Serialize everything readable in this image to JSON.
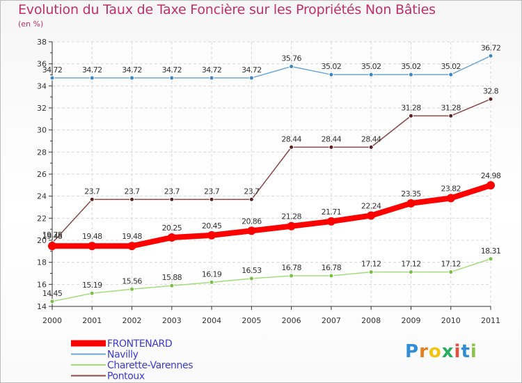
{
  "title": "Evolution du Taux de Taxe Foncière sur les Propriétés Non Bâties",
  "unit_label": "(en %)",
  "logo": {
    "text": "Proxiti",
    "letters": [
      {
        "ch": "P",
        "color": "#2f8ed6"
      },
      {
        "ch": "r",
        "color": "#e67e22"
      },
      {
        "ch": "o",
        "color": "#f1c40f"
      },
      {
        "ch": "x",
        "color": "#27ae60"
      },
      {
        "ch": "i",
        "color": "#e74c3c"
      },
      {
        "ch": "t",
        "color": "#2f8ed6"
      },
      {
        "ch": "i",
        "color": "#8bc34a"
      }
    ]
  },
  "chart_data": {
    "type": "line",
    "title": "Evolution du Taux de Taxe Foncière sur les Propriétés Non Bâties",
    "ylabel": "(en %)",
    "xlabel": "",
    "x": [
      "2000",
      "2001",
      "2002",
      "2003",
      "2004",
      "2005",
      "2006",
      "2007",
      "2008",
      "2009",
      "2010",
      "2011"
    ],
    "ylim": [
      14,
      38
    ],
    "yticks": [
      14,
      16,
      18,
      20,
      22,
      24,
      26,
      28,
      30,
      32,
      34,
      36,
      38
    ],
    "grid": true,
    "legend_position": "bottom-left",
    "series": [
      {
        "name": "Navilly",
        "color": "#6ea6d8",
        "point_color": "#3d86c6",
        "width": 1.5,
        "r": 3,
        "values": [
          34.72,
          34.72,
          34.72,
          34.72,
          34.72,
          34.72,
          35.76,
          35.02,
          35.02,
          35.02,
          35.02,
          36.72
        ],
        "labels": [
          "34.72",
          "34.72",
          "34.72",
          "34.72",
          "34.72",
          "34.72",
          "35.76",
          "35.02",
          "35.02",
          "35.02",
          "35.02",
          "36.72"
        ]
      },
      {
        "name": "Pontoux",
        "color": "#8a4848",
        "point_color": "#5a1f1f",
        "width": 1.5,
        "r": 3,
        "values": [
          19.75,
          23.7,
          23.7,
          23.7,
          23.7,
          23.7,
          28.44,
          28.44,
          28.44,
          31.28,
          31.28,
          32.8
        ],
        "labels": [
          "19.75",
          "23.7",
          "23.7",
          "23.7",
          "23.7",
          "23.7",
          "28.44",
          "28.44",
          "28.44",
          "31.28",
          "31.28",
          "32.8"
        ]
      },
      {
        "name": "Charette-Varennes",
        "color": "#a5dc7a",
        "point_color": "#76c043",
        "width": 1.5,
        "r": 3,
        "values": [
          14.45,
          15.19,
          15.56,
          15.88,
          16.19,
          16.53,
          16.78,
          16.78,
          17.12,
          17.12,
          17.12,
          18.31
        ],
        "labels": [
          "14.45",
          "15.19",
          "15.56",
          "15.88",
          "16.19",
          "16.53",
          "16.78",
          "16.78",
          "17.12",
          "17.12",
          "17.12",
          "18.31"
        ]
      },
      {
        "name": "FRONTENARD",
        "color": "#ff0000",
        "point_color": "#ff0000",
        "width": 8,
        "r": 6,
        "values": [
          19.48,
          19.48,
          19.48,
          20.25,
          20.45,
          20.86,
          21.28,
          21.71,
          22.24,
          23.35,
          23.82,
          24.98
        ],
        "labels": [
          "19.48",
          "19.48",
          "19.48",
          "20.25",
          "20.45",
          "20.86",
          "21.28",
          "21.71",
          "22.24",
          "23.35",
          "23.82",
          "24.98"
        ]
      }
    ],
    "legend": [
      "FRONTENARD",
      "Navilly",
      "Charette-Varennes",
      "Pontoux"
    ]
  }
}
